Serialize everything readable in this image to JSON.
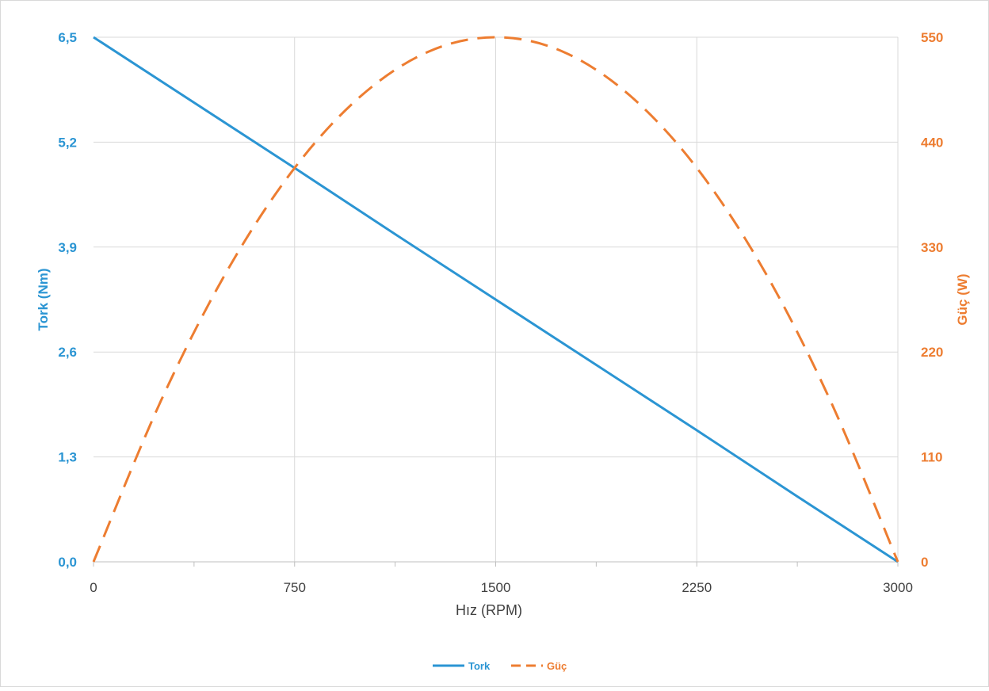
{
  "chart_data": {
    "type": "line",
    "title": "",
    "xlabel": "Hız (RPM)",
    "ylabel": "Tork (Nm)",
    "y2label": "Güç (W)",
    "xlim": [
      0,
      3000
    ],
    "ylim": [
      0,
      6.5
    ],
    "y2lim": [
      0,
      550
    ],
    "x_ticks": [
      "0",
      "750",
      "1500",
      "2250",
      "3000"
    ],
    "y_ticks": [
      "0,0",
      "1,3",
      "2,6",
      "3,9",
      "5,2",
      "6,5"
    ],
    "y2_ticks": [
      "0",
      "110",
      "220",
      "330",
      "440",
      "550"
    ],
    "grid": true,
    "legend_position": "bottom",
    "series": [
      {
        "name": "Tork",
        "axis": "left",
        "style": "solid",
        "color": "#2b95d3",
        "x": [
          0,
          375,
          750,
          1125,
          1500,
          1875,
          2250,
          2625,
          3000
        ],
        "values": [
          6.5,
          5.69,
          4.88,
          4.06,
          3.25,
          2.44,
          1.63,
          0.81,
          0.0
        ]
      },
      {
        "name": "Güç",
        "axis": "right",
        "style": "dashed",
        "color": "#ed7d31",
        "x": [
          0,
          250,
          500,
          750,
          1000,
          1250,
          1500,
          1750,
          2000,
          2250,
          2500,
          2750,
          3000
        ],
        "values": [
          0,
          168,
          306,
          413,
          489,
          535,
          550,
          535,
          489,
          413,
          306,
          168,
          0
        ]
      }
    ]
  }
}
